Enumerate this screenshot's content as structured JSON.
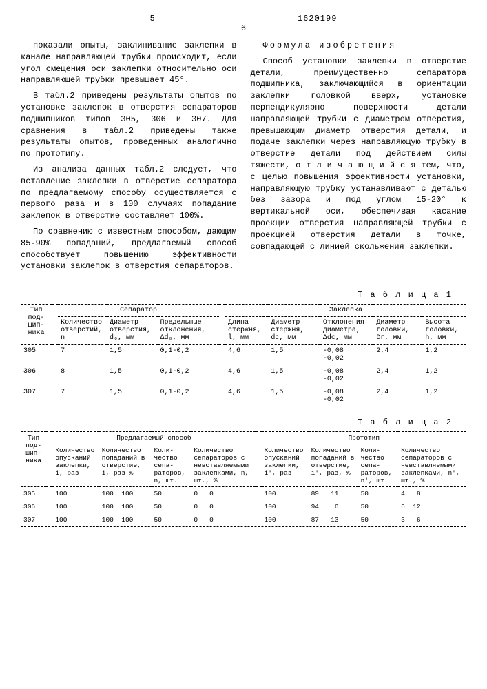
{
  "header": {
    "left_num": "5",
    "doc_number": "1620199",
    "right_num": "6"
  },
  "left_column": {
    "p1": "показали опыты, заклинивание заклеп­ки в канале направляющей трубки про­исходит, если угол смещения оси за­клепки относительно оси направляющей трубки превышает 45°.",
    "p2": "В табл.2 приведены результаты опы­тов по установке заклепок в отверстия сепараторов подшипников типов 305, 306 и 307. Для сравнения в табл.2 приведены также результаты опытов, проведенных аналогично по прототипу.",
    "p3": "Из анализа данных табл.2 следует, что вставление заклепки в отверстие сепаратора по предлагаемому способу осуществляется с первого раза и в 100 случаях попадание заклепок в отвер­стие составляет 100%.",
    "p4": "По сравнению с известным способом, дающим 85-90% попаданий, предлагаемый способ способствует повышению эффектив­ности установки заклепок в отвер­стия сепараторов."
  },
  "right_column": {
    "title": "Формула изобретения",
    "p1": "Способ установки заклепки в отвер­стие детали, преимущественно сепара­тора подшипника, заключающийся в ори­ентации заклепки головкой вверх, ус­тановке перпендикулярно поверхности детали направляющей трубки с диамет­ром отверстия, превышающим диаметр отверстия детали, и подаче заклепки через направляющую трубку в отверстие детали под действием силы тяжести, о т л и ч а ю щ и й с я  тем, что, с целью повышения эффективности ус­тановки, направляющую трубку устанав­ливают с деталью без зазора и под уг­лом 15-20° к вертикальной оси, обе­спечивая касание проекции отверстия направляющей трубки с проекцией от­верстия детали в точке, совпадающей с линией скольжения заклепки."
  },
  "table1": {
    "title": "Т а б л и ц а  1",
    "row_label": "Тип под­шип­ника",
    "group1": "Сепаратор",
    "group2": "Заклепка",
    "cols": {
      "c1": "Коли­чество отверс­тий, n",
      "c2": "Диаметр отверс­тия, d₀, мм",
      "c3": "Предель­ные от­клонения, Δd₀, мм",
      "c4": "Длина стерж­ня, l, мм",
      "c5": "Диаметр стержня, dc, мм",
      "c6": "Откло­нения диамет­ра, Δdc, мм",
      "c7": "Диаметр голов­ки, Dг, мм",
      "c8": "Высота голов­ки, h, мм"
    },
    "rows": [
      {
        "t": "305",
        "v": [
          "7",
          "1,5",
          "0,1-0,2",
          "4,6",
          "1,5",
          "-0,08\n-0,02",
          "2,4",
          "1,2"
        ]
      },
      {
        "t": "306",
        "v": [
          "8",
          "1,5",
          "0,1-0,2",
          "4,6",
          "1,5",
          "-0,08\n-0,02",
          "2,4",
          "1,2"
        ]
      },
      {
        "t": "307",
        "v": [
          "7",
          "1,5",
          "0,1-0,2",
          "4,6",
          "1,5",
          "-0,08\n-0,02",
          "2,4",
          "1,2"
        ]
      }
    ]
  },
  "table2": {
    "title": "Т а б л и ц а  2",
    "row_label": "Тип под­шип­ника",
    "group1": "Предлагаемый способ",
    "group2": "Прототип",
    "cols": {
      "c1": "Коли­чество опуска­ний за­клепки, i, раз",
      "c2": "Коли­чество попа­даний в от­верстие, i, раз  %",
      "c3": "Коли­чество сепа­рато­ров, n, шт.",
      "c4": "Коли­чество сепарато­ров с невстав­ляемыми заклеп­ками, n, шт., %",
      "c5": "Коли­чество опуска­ний за­клепки, i', раз",
      "c6": "Коли­чество попада­ний в отверс­тие, i', раз, %",
      "c7": "Коли­чество сепа­рато­ров, n', шт.",
      "c8": "Коли­чество сепара­торов с невставля­емыми заклеп­ками, n', шт., %"
    },
    "rows": [
      {
        "t": "305",
        "v": [
          "100",
          "100  100",
          "50",
          "0   0",
          "100",
          "89   11",
          "50",
          "4   8"
        ]
      },
      {
        "t": "306",
        "v": [
          "100",
          "100  100",
          "50",
          "0   0",
          "100",
          "94    6",
          "50",
          "6  12"
        ]
      },
      {
        "t": "307",
        "v": [
          "100",
          "100  100",
          "50",
          "0   0",
          "100",
          "87   13",
          "50",
          "3   6"
        ]
      }
    ]
  }
}
